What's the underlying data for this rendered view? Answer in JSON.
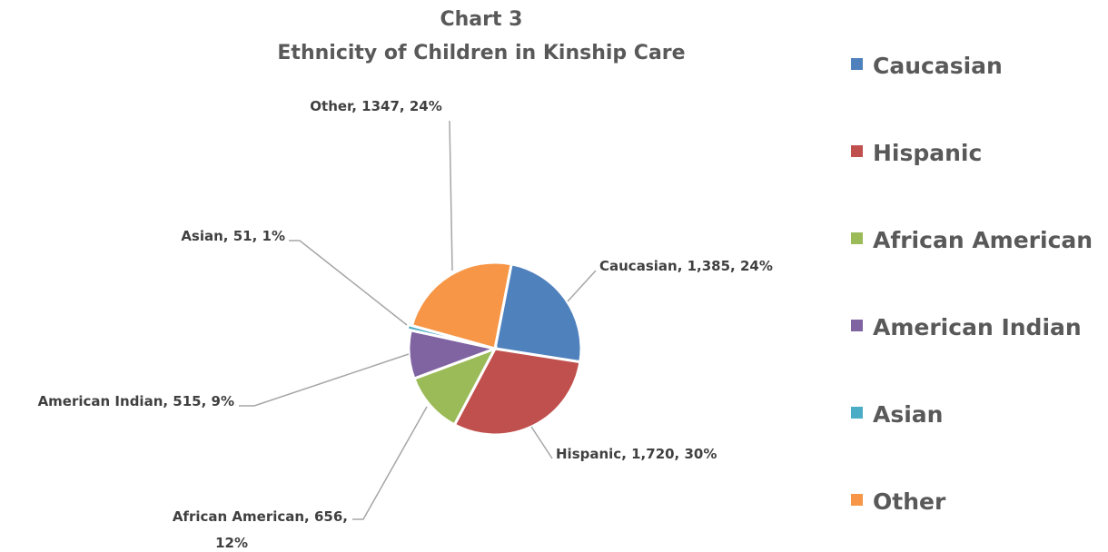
{
  "chart_data": {
    "type": "pie",
    "title": "Chart 3",
    "subtitle": "Ethnicity of Children in Kinship Care",
    "start_angle_deg": 11,
    "direction": "clockwise",
    "legend_position": "right",
    "slices": [
      {
        "name": "Caucasian",
        "value": 1385,
        "percent": 24,
        "color": "#4f81bd",
        "label_lines": [
          "Caucasian, 1,385, 24%"
        ]
      },
      {
        "name": "Hispanic",
        "value": 1720,
        "percent": 30,
        "color": "#c0504d",
        "label_lines": [
          "Hispanic, 1,720, 30%"
        ]
      },
      {
        "name": "African American",
        "value": 656,
        "percent": 12,
        "color": "#9bbb59",
        "label_lines": [
          "African American, 656,",
          "12%"
        ]
      },
      {
        "name": "American Indian",
        "value": 515,
        "percent": 9,
        "color": "#8064a2",
        "label_lines": [
          "American Indian, 515, 9%"
        ]
      },
      {
        "name": "Asian",
        "value": 51,
        "percent": 1,
        "color": "#4bacc6",
        "label_lines": [
          "Asian, 51, 1%"
        ]
      },
      {
        "name": "Other",
        "value": 1347,
        "percent": 24,
        "color": "#f79646",
        "label_lines": [
          "Other, 1347, 24%"
        ]
      }
    ]
  }
}
